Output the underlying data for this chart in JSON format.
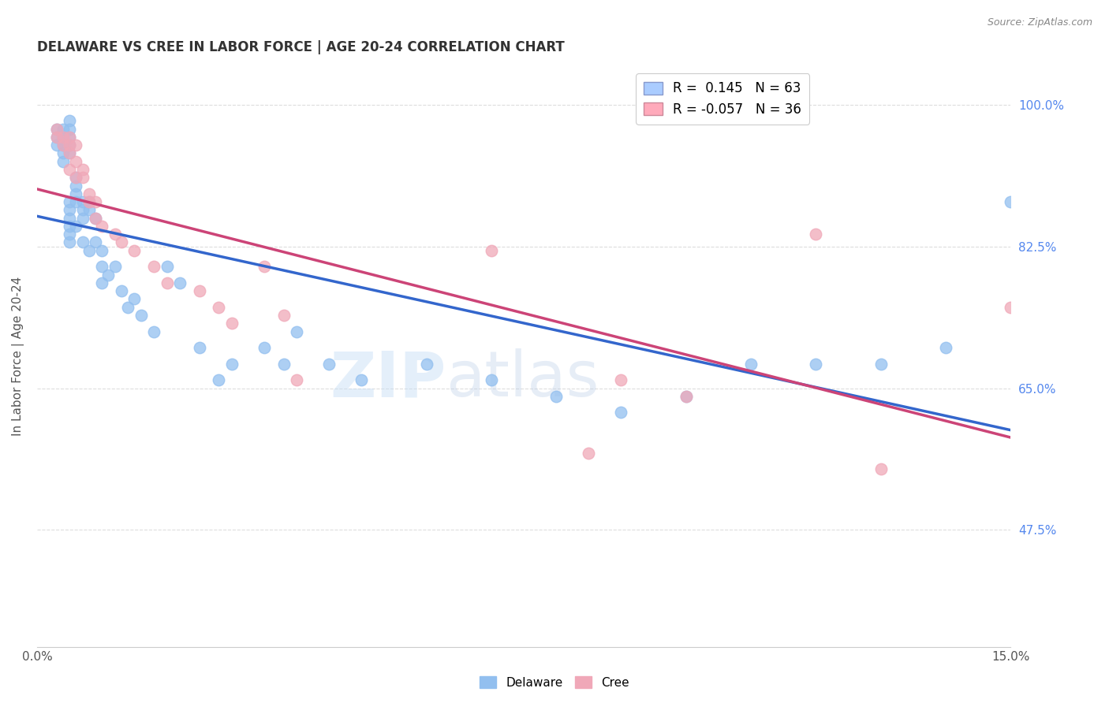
{
  "title": "DELAWARE VS CREE IN LABOR FORCE | AGE 20-24 CORRELATION CHART",
  "source": "Source: ZipAtlas.com",
  "ylabel": "In Labor Force | Age 20-24",
  "xlim": [
    0.0,
    0.15
  ],
  "ylim": [
    0.33,
    1.05
  ],
  "ytick_labels": [
    "47.5%",
    "65.0%",
    "82.5%",
    "100.0%"
  ],
  "ytick_positions": [
    0.475,
    0.65,
    0.825,
    1.0
  ],
  "grid_color": "#dddddd",
  "background_color": "#ffffff",
  "watermark_text": "ZIPatlas",
  "delaware_color": "#92bfef",
  "cree_color": "#f0a8b8",
  "delaware_line_color": "#3366cc",
  "cree_line_color": "#cc4477",
  "legend_label_1": "R =  0.145   N = 63",
  "legend_label_2": "R = -0.057   N = 36",
  "legend_color_1": "#aaccff",
  "legend_color_2": "#ffaabb",
  "del_legend": "Delaware",
  "cree_legend": "Cree",
  "delaware_x": [
    0.003,
    0.003,
    0.003,
    0.004,
    0.004,
    0.004,
    0.004,
    0.004,
    0.005,
    0.005,
    0.005,
    0.005,
    0.005,
    0.005,
    0.005,
    0.005,
    0.005,
    0.005,
    0.005,
    0.006,
    0.006,
    0.006,
    0.006,
    0.006,
    0.007,
    0.007,
    0.007,
    0.007,
    0.008,
    0.008,
    0.008,
    0.009,
    0.009,
    0.01,
    0.01,
    0.01,
    0.011,
    0.012,
    0.013,
    0.014,
    0.015,
    0.016,
    0.018,
    0.02,
    0.022,
    0.025,
    0.028,
    0.03,
    0.035,
    0.038,
    0.04,
    0.045,
    0.05,
    0.06,
    0.07,
    0.08,
    0.09,
    0.1,
    0.11,
    0.12,
    0.13,
    0.14,
    0.15
  ],
  "delaware_y": [
    0.97,
    0.96,
    0.95,
    0.97,
    0.96,
    0.95,
    0.94,
    0.93,
    0.98,
    0.97,
    0.96,
    0.95,
    0.94,
    0.88,
    0.87,
    0.86,
    0.85,
    0.84,
    0.83,
    0.91,
    0.9,
    0.89,
    0.88,
    0.85,
    0.88,
    0.87,
    0.86,
    0.83,
    0.88,
    0.87,
    0.82,
    0.86,
    0.83,
    0.82,
    0.8,
    0.78,
    0.79,
    0.8,
    0.77,
    0.75,
    0.76,
    0.74,
    0.72,
    0.8,
    0.78,
    0.7,
    0.66,
    0.68,
    0.7,
    0.68,
    0.72,
    0.68,
    0.66,
    0.68,
    0.66,
    0.64,
    0.62,
    0.64,
    0.68,
    0.68,
    0.68,
    0.7,
    0.88
  ],
  "cree_x": [
    0.003,
    0.003,
    0.004,
    0.004,
    0.005,
    0.005,
    0.005,
    0.005,
    0.006,
    0.006,
    0.006,
    0.007,
    0.007,
    0.008,
    0.008,
    0.009,
    0.009,
    0.01,
    0.012,
    0.013,
    0.015,
    0.018,
    0.02,
    0.025,
    0.028,
    0.03,
    0.035,
    0.038,
    0.04,
    0.07,
    0.085,
    0.09,
    0.1,
    0.12,
    0.13,
    0.15
  ],
  "cree_y": [
    0.97,
    0.96,
    0.96,
    0.95,
    0.96,
    0.95,
    0.94,
    0.92,
    0.95,
    0.93,
    0.91,
    0.92,
    0.91,
    0.89,
    0.88,
    0.88,
    0.86,
    0.85,
    0.84,
    0.83,
    0.82,
    0.8,
    0.78,
    0.77,
    0.75,
    0.73,
    0.8,
    0.74,
    0.66,
    0.82,
    0.57,
    0.66,
    0.64,
    0.84,
    0.55,
    0.75
  ]
}
